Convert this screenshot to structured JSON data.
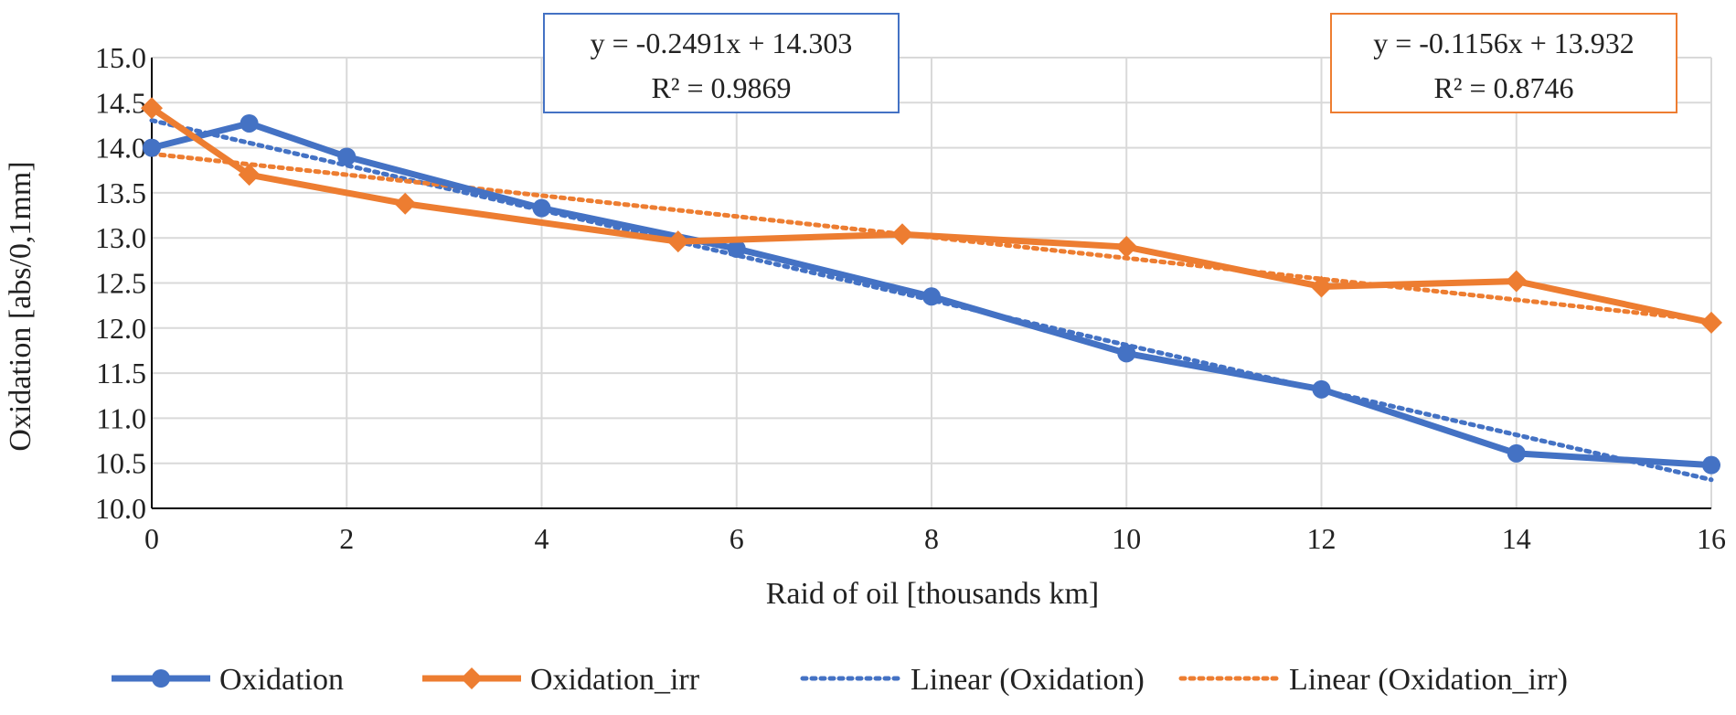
{
  "chart_data": {
    "type": "line",
    "xlabel": "Raid of oil [thousands km]",
    "ylabel": "Oxidation [abs/0,1mm]",
    "xlim": [
      0,
      16
    ],
    "ylim": [
      10.0,
      15.0
    ],
    "x_ticks": [
      "0",
      "2",
      "4",
      "6",
      "8",
      "10",
      "12",
      "14",
      "16"
    ],
    "y_ticks": [
      "10.0",
      "10.5",
      "11.0",
      "11.5",
      "12.0",
      "12.5",
      "13.0",
      "13.5",
      "14.0",
      "14.5",
      "15.0"
    ],
    "grid": true,
    "legend_position": "bottom",
    "series": [
      {
        "name": "Oxidation",
        "color": "#4472C4",
        "marker": "circle",
        "style": "solid",
        "points": [
          {
            "x": 0,
            "y": 14.0
          },
          {
            "x": 1,
            "y": 14.27
          },
          {
            "x": 2,
            "y": 13.9
          },
          {
            "x": 4,
            "y": 13.33
          },
          {
            "x": 6,
            "y": 12.88
          },
          {
            "x": 8,
            "y": 12.35
          },
          {
            "x": 10,
            "y": 11.72
          },
          {
            "x": 12,
            "y": 11.32
          },
          {
            "x": 14,
            "y": 10.61
          },
          {
            "x": 16,
            "y": 10.48
          }
        ]
      },
      {
        "name": "Oxidation_irr",
        "color": "#ED7D31",
        "marker": "diamond",
        "style": "solid",
        "points": [
          {
            "x": 0,
            "y": 14.44
          },
          {
            "x": 1,
            "y": 13.7
          },
          {
            "x": 2.6,
            "y": 13.38
          },
          {
            "x": 5.4,
            "y": 12.96
          },
          {
            "x": 7.7,
            "y": 13.04
          },
          {
            "x": 10,
            "y": 12.9
          },
          {
            "x": 12,
            "y": 12.46
          },
          {
            "x": 14,
            "y": 12.52
          },
          {
            "x": 16,
            "y": 12.06
          }
        ]
      },
      {
        "name": "Linear (Oxidation)",
        "color": "#4472C4",
        "style": "dotted",
        "trendline": {
          "slope": -0.2491,
          "intercept": 14.303
        }
      },
      {
        "name": "Linear (Oxidation_irr)",
        "color": "#ED7D31",
        "style": "dotted",
        "trendline": {
          "slope": -0.1156,
          "intercept": 13.932
        }
      }
    ],
    "annotations": [
      {
        "line1": "y = -0.2491x + 14.303",
        "line2": "R² = 0.9869",
        "border_color": "#4472C4"
      },
      {
        "line1": "y = -0.1156x + 13.932",
        "line2": "R² = 0.8746",
        "border_color": "#ED7D31"
      }
    ]
  }
}
